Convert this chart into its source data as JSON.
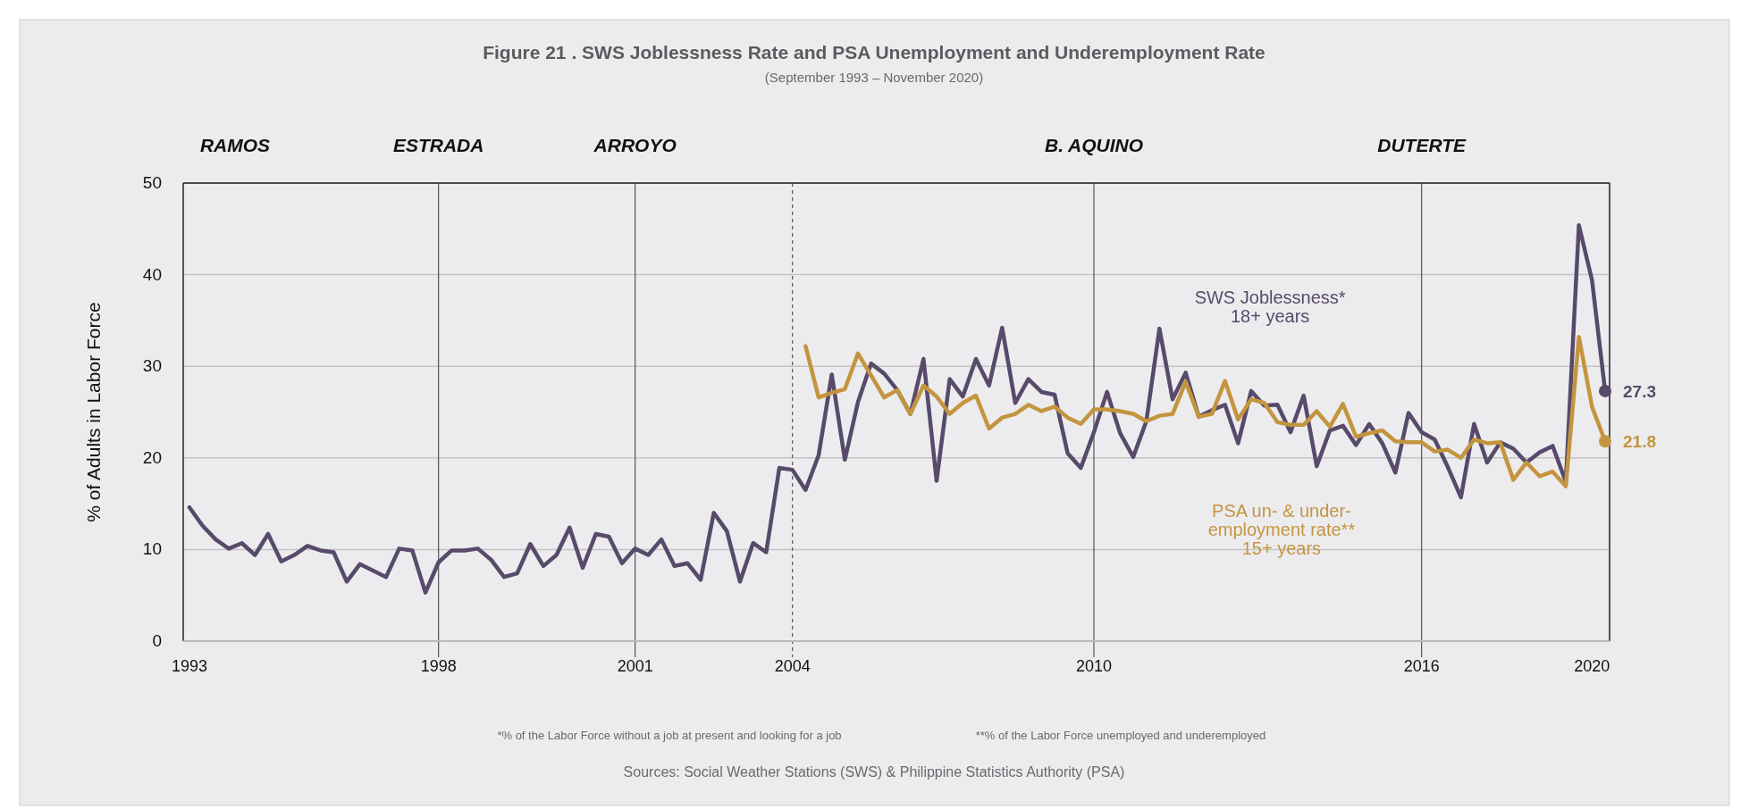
{
  "chart_data": {
    "type": "line",
    "title": "Figure 21 . SWS Joblessness Rate and PSA Unemployment and Underemployment Rate",
    "subtitle": "(September 1993 – November 2020)",
    "ylabel": "% of Adults in Labor Force",
    "categories": [
      "1993",
      null,
      null,
      null,
      null,
      null,
      null,
      null,
      null,
      null,
      null,
      null,
      null,
      null,
      null,
      null,
      null,
      null,
      null,
      "1998",
      null,
      null,
      null,
      null,
      null,
      null,
      null,
      null,
      null,
      null,
      null,
      null,
      null,
      null,
      "2001",
      null,
      null,
      null,
      null,
      null,
      null,
      null,
      null,
      null,
      null,
      null,
      "2004",
      null,
      null,
      null,
      null,
      null,
      null,
      null,
      null,
      null,
      null,
      null,
      null,
      null,
      null,
      null,
      null,
      null,
      null,
      null,
      null,
      null,
      null,
      "2010",
      null,
      null,
      null,
      null,
      null,
      null,
      null,
      null,
      null,
      null,
      null,
      null,
      null,
      null,
      null,
      null,
      null,
      null,
      null,
      null,
      null,
      null,
      null,
      null,
      "2016",
      null,
      null,
      null,
      null,
      null,
      null,
      null,
      null,
      null,
      null,
      null,
      null,
      "2020",
      null
    ],
    "series": [
      {
        "name": "SWS Joblessness*\n18+ years",
        "color": "#574a6a",
        "values": [
          14.6,
          12.6,
          11.1,
          10.1,
          10.7,
          9.4,
          11.7,
          8.7,
          9.4,
          10.4,
          9.9,
          9.7,
          6.5,
          8.4,
          7.7,
          7.0,
          10.1,
          9.9,
          5.3,
          8.6,
          9.9,
          9.9,
          10.1,
          8.9,
          7.0,
          7.4,
          10.6,
          8.2,
          9.4,
          12.4,
          8.0,
          11.7,
          11.4,
          8.5,
          10.1,
          9.4,
          11.1,
          8.2,
          8.5,
          6.7,
          14.0,
          12.0,
          6.5,
          10.7,
          9.7,
          18.9,
          18.7,
          16.5,
          20.3,
          29.1,
          19.8,
          26.1,
          30.3,
          29.2,
          27.4,
          24.8,
          30.8,
          17.5,
          28.6,
          26.7,
          30.8,
          27.9,
          34.2,
          26.0,
          28.6,
          27.2,
          26.9,
          20.5,
          18.9,
          22.8,
          27.2,
          22.7,
          20.1,
          24.0,
          34.1,
          26.4,
          29.3,
          24.5,
          25.2,
          25.8,
          21.6,
          27.3,
          25.7,
          25.8,
          22.8,
          26.8,
          19.1,
          23.0,
          23.5,
          21.4,
          23.7,
          21.6,
          18.4,
          24.9,
          22.8,
          22.0,
          19.0,
          15.7,
          23.7,
          19.5,
          21.7,
          21.0,
          19.5,
          20.6,
          21.3,
          17.4,
          45.4,
          39.4,
          27.3
        ],
        "value_labels": [
          null,
          null,
          null,
          null,
          null,
          null,
          null,
          null,
          null,
          null,
          null,
          null,
          null,
          null,
          null,
          null,
          null,
          null,
          null,
          null,
          null,
          null,
          null,
          null,
          null,
          null,
          null,
          null,
          null,
          null,
          null,
          null,
          null,
          null,
          null,
          null,
          null,
          null,
          null,
          null,
          null,
          null,
          null,
          null,
          null,
          null,
          null,
          null,
          null,
          null,
          null,
          null,
          null,
          null,
          null,
          null,
          null,
          null,
          null,
          null,
          null,
          null,
          null,
          null,
          null,
          null,
          null,
          null,
          null,
          null,
          null,
          null,
          null,
          null,
          null,
          null,
          null,
          null,
          null,
          null,
          null,
          null,
          null,
          null,
          null,
          null,
          null,
          null,
          null,
          null,
          null,
          null,
          null,
          null,
          null,
          null,
          null,
          null,
          null,
          null,
          null,
          null,
          null,
          null,
          null,
          null,
          null,
          null,
          "27.3"
        ]
      },
      {
        "name": "PSA un- & under-\nemployment rate**\n15+ years",
        "color": "#c4953f",
        "values": [
          null,
          null,
          null,
          null,
          null,
          null,
          null,
          null,
          null,
          null,
          null,
          null,
          null,
          null,
          null,
          null,
          null,
          null,
          null,
          null,
          null,
          null,
          null,
          null,
          null,
          null,
          null,
          null,
          null,
          null,
          null,
          null,
          null,
          null,
          null,
          null,
          null,
          null,
          null,
          null,
          null,
          null,
          null,
          null,
          null,
          null,
          null,
          32.2,
          26.6,
          27.1,
          27.5,
          31.4,
          29.0,
          26.6,
          27.4,
          24.8,
          27.9,
          26.7,
          24.8,
          26.0,
          26.8,
          23.2,
          24.4,
          24.8,
          25.8,
          25.1,
          25.6,
          24.4,
          23.7,
          25.3,
          25.3,
          25.1,
          24.8,
          24.0,
          24.6,
          24.8,
          28.3,
          24.5,
          24.8,
          28.4,
          24.2,
          26.4,
          26.0,
          23.9,
          23.6,
          23.6,
          25.1,
          23.4,
          25.9,
          22.3,
          22.7,
          23.0,
          21.8,
          21.7,
          21.7,
          20.7,
          20.9,
          20.0,
          22.0,
          21.6,
          21.7,
          17.6,
          19.5,
          18.0,
          18.5,
          16.9,
          33.2,
          25.6,
          21.8
        ],
        "value_labels": [
          null,
          null,
          null,
          null,
          null,
          null,
          null,
          null,
          null,
          null,
          null,
          null,
          null,
          null,
          null,
          null,
          null,
          null,
          null,
          null,
          null,
          null,
          null,
          null,
          null,
          null,
          null,
          null,
          null,
          null,
          null,
          null,
          null,
          null,
          null,
          null,
          null,
          null,
          null,
          null,
          null,
          null,
          null,
          null,
          null,
          null,
          null,
          null,
          null,
          null,
          null,
          null,
          null,
          null,
          null,
          null,
          null,
          null,
          null,
          null,
          null,
          null,
          null,
          null,
          null,
          null,
          null,
          null,
          null,
          null,
          null,
          null,
          null,
          null,
          null,
          null,
          null,
          null,
          null,
          null,
          null,
          null,
          null,
          null,
          null,
          null,
          null,
          null,
          null,
          null,
          null,
          null,
          null,
          null,
          null,
          null,
          null,
          null,
          null,
          null,
          null,
          null,
          null,
          null,
          null,
          null,
          null,
          null,
          "21.8"
        ]
      }
    ],
    "ylim": [
      0,
      50
    ],
    "yticks": [
      0,
      10,
      20,
      30,
      40,
      50
    ],
    "grid": "y",
    "legend": false,
    "ref_lines": [
      {
        "axis": "x",
        "value": "1998",
        "label": "ESTRADA"
      },
      {
        "axis": "x",
        "value": "2001",
        "label": "ARROYO"
      },
      {
        "axis": "x",
        "value": "2004",
        "label": null,
        "line_style": "dashed"
      },
      {
        "axis": "x",
        "value": "2010",
        "label": "B. AQUINO"
      },
      {
        "axis": "x",
        "value": "2016",
        "label": "DUTERTE"
      }
    ],
    "annotations": [
      "RAMOS",
      "*% of the Labor Force without a job at present and looking for a job",
      "**% of the Labor Force unemployed and underemployed",
      "Sources: Social Weather Stations (SWS) & Philippine Statistics Authority (PSA)"
    ]
  }
}
